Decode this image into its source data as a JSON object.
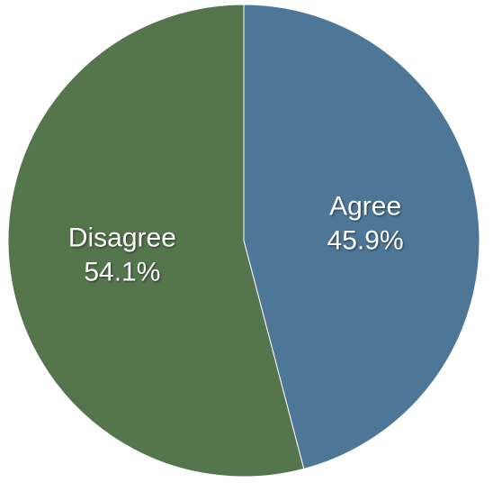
{
  "chart_data": {
    "type": "pie",
    "categories": [
      "Agree",
      "Disagree"
    ],
    "values": [
      45.9,
      54.1
    ],
    "value_labels": [
      "45.9%",
      "54.1%"
    ],
    "colors": [
      "#4e7797",
      "#55754d"
    ]
  }
}
